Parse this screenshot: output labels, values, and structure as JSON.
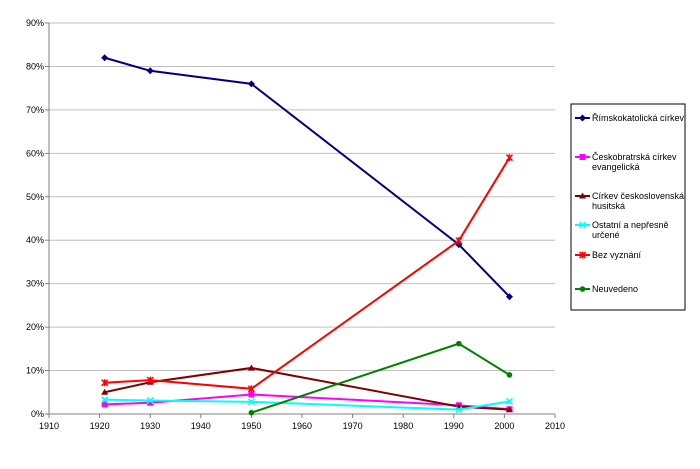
{
  "chart_data": {
    "type": "line",
    "x_ticks": [
      "1910",
      "1920",
      "1930",
      "1940",
      "1950",
      "1960",
      "1970",
      "1980",
      "1990",
      "2000",
      "2010"
    ],
    "y_ticks": [
      "0%",
      "10%",
      "20%",
      "30%",
      "40%",
      "50%",
      "60%",
      "70%",
      "80%",
      "90%"
    ],
    "xlim": [
      1910,
      2010
    ],
    "ylim": [
      0,
      90
    ],
    "grid": "horizontal",
    "legend_position": "right",
    "series": [
      {
        "name": "Římskokatolická církev",
        "color": "#000080",
        "marker": "diamond",
        "x": [
          1921,
          1930,
          1950,
          1991,
          2001
        ],
        "y": [
          82,
          79,
          76,
          39,
          27
        ]
      },
      {
        "name": "Českobratrská církev evangelická",
        "color": "#ff00ff",
        "marker": "square",
        "x": [
          1921,
          1930,
          1950,
          1991,
          2001
        ],
        "y": [
          2.2,
          2.6,
          4.5,
          2,
          1.1
        ]
      },
      {
        "name": "Církev československá husitská",
        "color": "#800000",
        "marker": "triangle",
        "x": [
          1921,
          1930,
          1950,
          1991,
          2001
        ],
        "y": [
          5,
          7.3,
          10.6,
          1.7,
          1
        ]
      },
      {
        "name": "Ostatní a nepřesně určené",
        "color": "#00ffff",
        "marker": "x",
        "x": [
          1921,
          1930,
          1950,
          1991,
          2001
        ],
        "y": [
          3.3,
          3.1,
          2.8,
          1,
          2.9
        ]
      },
      {
        "name": "Bez vyznání",
        "color": "#ff0000",
        "marker": "star",
        "x": [
          1921,
          1930,
          1950,
          1991,
          2001
        ],
        "y": [
          7.2,
          7.8,
          5.8,
          39.9,
          59
        ]
      },
      {
        "name": "Neuvedeno",
        "color": "#008000",
        "marker": "circle",
        "x": [
          1950,
          1991,
          2001
        ],
        "y": [
          0.3,
          16.2,
          9
        ]
      }
    ]
  },
  "legend_lines": [
    [
      "Římskokatolická církev"
    ],
    [
      "Českobratrská církev",
      "evangelická"
    ],
    [
      "Církev československá",
      "husitská"
    ],
    [
      "Ostatní a nepřesně",
      "určené"
    ],
    [
      "Bez vyznání"
    ],
    [
      "Neuvedeno"
    ]
  ]
}
